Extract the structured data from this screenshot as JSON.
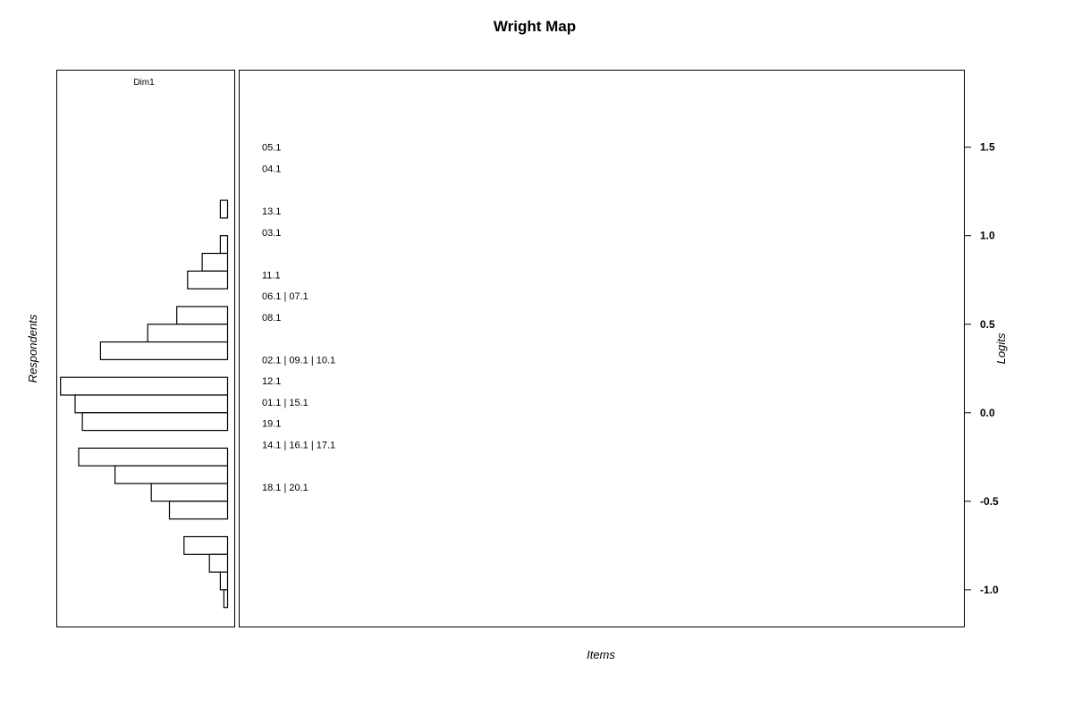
{
  "chart_data": {
    "type": "bar",
    "title": "Wright Map",
    "xlabel": "Items",
    "ylabel_left": "Respondents",
    "ylabel_right": "Logits",
    "panel_label": "Dim1",
    "yticks": [
      1.5,
      1.0,
      0.5,
      0.0,
      -0.5,
      -1.0
    ],
    "ytick_labels": [
      "1.5",
      "1.0",
      "0.5",
      "0.0",
      "-0.5",
      "-1.0"
    ],
    "ylim": [
      -1.21,
      1.935
    ],
    "grid": false,
    "respondent_histogram": {
      "bin_width": 0.1,
      "bins": [
        {
          "bottom": 1.1,
          "top": 1.2,
          "count": 2
        },
        {
          "bottom": 1.0,
          "top": 1.1,
          "count": 0
        },
        {
          "bottom": 0.9,
          "top": 1.0,
          "count": 2
        },
        {
          "bottom": 0.8,
          "top": 0.9,
          "count": 7
        },
        {
          "bottom": 0.7,
          "top": 0.8,
          "count": 11
        },
        {
          "bottom": 0.6,
          "top": 0.7,
          "count": 0
        },
        {
          "bottom": 0.5,
          "top": 0.6,
          "count": 14
        },
        {
          "bottom": 0.4,
          "top": 0.5,
          "count": 22
        },
        {
          "bottom": 0.3,
          "top": 0.4,
          "count": 35
        },
        {
          "bottom": 0.2,
          "top": 0.3,
          "count": 0
        },
        {
          "bottom": 0.1,
          "top": 0.2,
          "count": 46
        },
        {
          "bottom": 0.0,
          "top": 0.1,
          "count": 42
        },
        {
          "bottom": -0.1,
          "top": 0.0,
          "count": 40
        },
        {
          "bottom": -0.2,
          "top": -0.1,
          "count": 0
        },
        {
          "bottom": -0.3,
          "top": -0.2,
          "count": 41
        },
        {
          "bottom": -0.4,
          "top": -0.3,
          "count": 31
        },
        {
          "bottom": -0.5,
          "top": -0.4,
          "count": 21
        },
        {
          "bottom": -0.6,
          "top": -0.5,
          "count": 16
        },
        {
          "bottom": -0.7,
          "top": -0.6,
          "count": 0
        },
        {
          "bottom": -0.8,
          "top": -0.7,
          "count": 12
        },
        {
          "bottom": -0.9,
          "top": -0.8,
          "count": 5
        },
        {
          "bottom": -1.0,
          "top": -0.9,
          "count": 2
        },
        {
          "bottom": -1.1,
          "top": -1.0,
          "count": 1
        }
      ]
    },
    "items": [
      {
        "label": "05.1",
        "logit": 1.5
      },
      {
        "label": "04.1",
        "logit": 1.38
      },
      {
        "label": "13.1",
        "logit": 1.14
      },
      {
        "label": "03.1",
        "logit": 1.02
      },
      {
        "label": "11.1",
        "logit": 0.78
      },
      {
        "label": "06.1 | 07.1",
        "logit": 0.66
      },
      {
        "label": "08.1",
        "logit": 0.54
      },
      {
        "label": "02.1 | 09.1 | 10.1",
        "logit": 0.3
      },
      {
        "label": "12.1",
        "logit": 0.18
      },
      {
        "label": "01.1 | 15.1",
        "logit": 0.06
      },
      {
        "label": "19.1",
        "logit": -0.06
      },
      {
        "label": "14.1 | 16.1 | 17.1",
        "logit": -0.18
      },
      {
        "label": "18.1 | 20.1",
        "logit": -0.42
      }
    ]
  }
}
